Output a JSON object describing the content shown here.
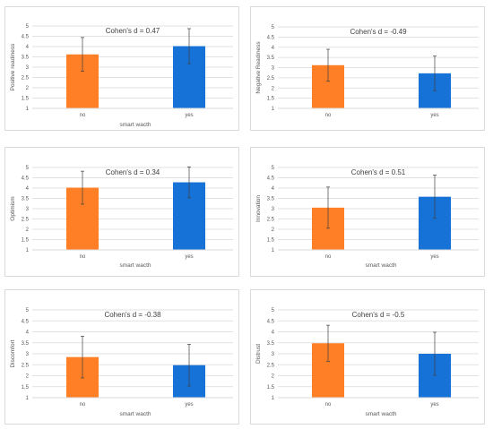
{
  "colors": {
    "no": "#FF7F27",
    "yes": "#1672D6",
    "grid": "#d9d9d9",
    "error": "#404040"
  },
  "chart_data": [
    {
      "type": "bar",
      "categories": [
        "no",
        "yes"
      ],
      "values": [
        3.62,
        4.02
      ],
      "errors": [
        0.82,
        0.85
      ],
      "xlabel": "smart wacth",
      "ylabel": "Positive readiness",
      "annotation": "Cohen's d = 0.47",
      "ylim": [
        1,
        5
      ],
      "yticks": [
        "1",
        "1.5",
        "2",
        "2.5",
        "3",
        "3.5",
        "4",
        "4.5",
        "5"
      ],
      "grid": true
    },
    {
      "type": "bar",
      "categories": [
        "no",
        "yes"
      ],
      "values": [
        3.12,
        2.72
      ],
      "errors": [
        0.78,
        0.85
      ],
      "xlabel": "",
      "ylabel": "Negative Readiness",
      "annotation": "Cohen's d = -0.49",
      "ylim": [
        1,
        5
      ],
      "yticks": [
        "1",
        "1.5",
        "2",
        "2.5",
        "3",
        "3.5",
        "4",
        "4.5",
        "5"
      ],
      "grid": true
    },
    {
      "type": "bar",
      "categories": [
        "no",
        "yes"
      ],
      "values": [
        4.02,
        4.28
      ],
      "errors": [
        0.8,
        0.75
      ],
      "xlabel": "smart wacth",
      "ylabel": "Optimism",
      "annotation": "Cohen's d = 0.34",
      "ylim": [
        1,
        5
      ],
      "yticks": [
        "1",
        "1.5",
        "2",
        "2.5",
        "3",
        "3.5",
        "4",
        "4.5",
        "5"
      ],
      "grid": true
    },
    {
      "type": "bar",
      "categories": [
        "no",
        "yes"
      ],
      "values": [
        3.05,
        3.58
      ],
      "errors": [
        1.0,
        1.05
      ],
      "xlabel": "smart wacth",
      "ylabel": "Innovation",
      "annotation": "Cohen's d = 0.51",
      "ylim": [
        1,
        5
      ],
      "yticks": [
        "1",
        "1.5",
        "2",
        "2.5",
        "3",
        "3.5",
        "4",
        "4.5",
        "5"
      ],
      "grid": true
    },
    {
      "type": "bar",
      "categories": [
        "no",
        "yes"
      ],
      "values": [
        2.85,
        2.48
      ],
      "errors": [
        0.95,
        0.95
      ],
      "xlabel": "smart wacth",
      "ylabel": "Discomfort",
      "annotation": "Cohen's d = -0.38",
      "ylim": [
        1,
        5
      ],
      "yticks": [
        "1",
        "1.5",
        "2",
        "2.5",
        "3",
        "3.5",
        "4",
        "4.5",
        "5"
      ],
      "grid": true
    },
    {
      "type": "bar",
      "categories": [
        "no",
        "yes"
      ],
      "values": [
        3.48,
        3.0
      ],
      "errors": [
        0.82,
        0.98
      ],
      "xlabel": "smart wacth",
      "ylabel": "Distrust",
      "annotation": "Cohen's d = -0.5",
      "ylim": [
        1,
        5
      ],
      "yticks": [
        "1",
        "1.5",
        "2",
        "2.5",
        "3",
        "3.5",
        "4",
        "4.5",
        "5"
      ],
      "grid": true
    }
  ]
}
